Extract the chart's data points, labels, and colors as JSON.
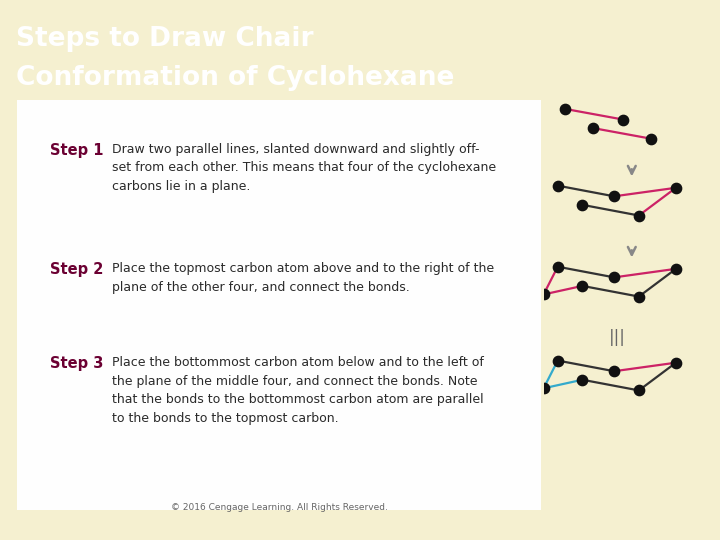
{
  "title_line1": "Steps to Draw Chair",
  "title_line2": "Conformation of Cyclohexane",
  "title_bg": "#2e9e00",
  "title_color": "#ffffff",
  "body_bg": "#f5f0d0",
  "panel_bg": "#fafaf0",
  "copyright": "© 2016 Cengage Learning. All Rights Reserved.",
  "step1_label": "Step 1",
  "step1_text": "Draw two parallel lines, slanted downward and slightly off-\nset from each other. This means that four of the cyclohexane\ncarbons lie in a plane.",
  "step2_label": "Step 2",
  "step2_text": "Place the topmost carbon atom above and to the right of the\nplane of the other four, and connect the bonds.",
  "step3_label": "Step 3",
  "step3_text": "Place the bottommost carbon atom below and to the left of\nthe plane of the middle four, and connect the bonds. Note\nthat the bonds to the bottommost carbon atom are parallel\nto the bonds to the topmost carbon.",
  "step_label_color": "#6b0032",
  "text_color": "#2a2a2a",
  "dot_color": "#111111",
  "line_color_black": "#333333",
  "line_color_pink": "#cc2266",
  "line_color_blue": "#33aacc",
  "dot_size": 55,
  "lw": 1.6,
  "arrow_color": "#888888"
}
